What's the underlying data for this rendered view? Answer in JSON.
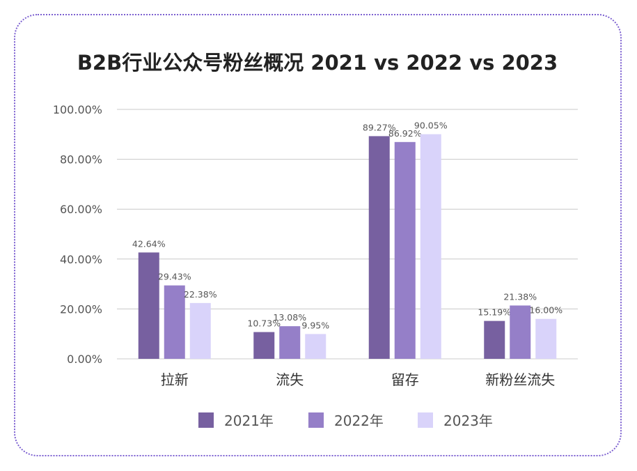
{
  "chart_data": {
    "type": "bar",
    "title": "B2B行业公众号粉丝概况 2021 vs 2022 vs 2023",
    "categories": [
      "拉新",
      "流失",
      "留存",
      "新粉丝流失"
    ],
    "series": [
      {
        "name": "2021年",
        "color": "#7760a0",
        "values": [
          42.64,
          10.73,
          89.27,
          15.19
        ],
        "labels": [
          "42.64%",
          "10.73%",
          "89.27%",
          "15.19%"
        ]
      },
      {
        "name": "2022年",
        "color": "#957fc8",
        "values": [
          29.43,
          13.08,
          86.92,
          21.38
        ],
        "labels": [
          "29.43%",
          "13.08%",
          "86.92%",
          "21.38%"
        ]
      },
      {
        "name": "2023年",
        "color": "#d9d3fa",
        "values": [
          22.38,
          9.95,
          90.05,
          16.0
        ],
        "labels": [
          "22.38%",
          "9.95%",
          "90.05%",
          "16.00%"
        ]
      }
    ],
    "yticks": [
      "0.00%",
      "20.00%",
      "40.00%",
      "60.00%",
      "80.00%",
      "100.00%"
    ],
    "ylim": [
      0,
      100
    ],
    "grid": true,
    "legend": "bottom",
    "xlabel": "",
    "ylabel": ""
  }
}
